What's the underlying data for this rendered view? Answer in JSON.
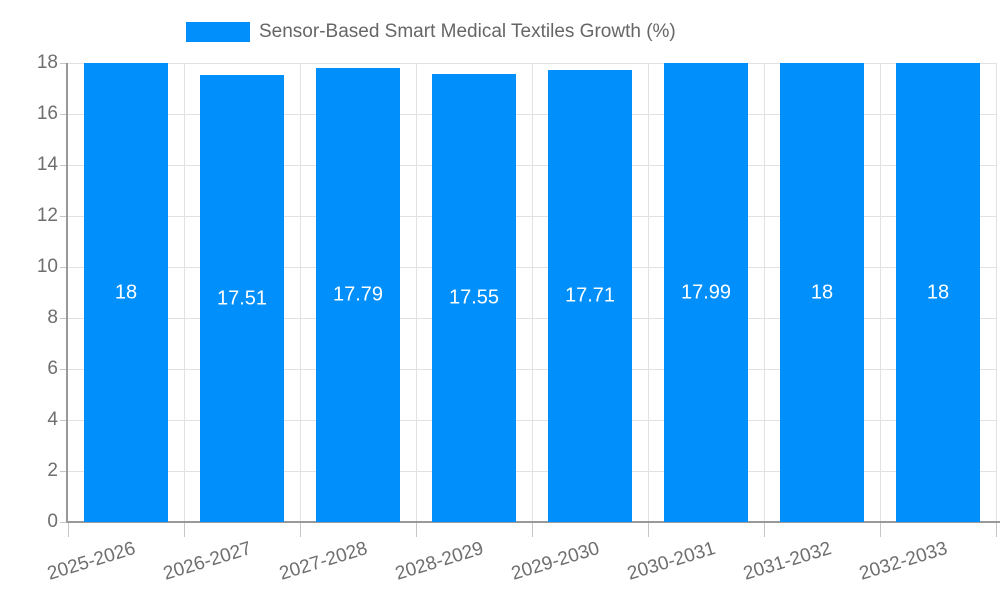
{
  "chart_data": {
    "type": "bar",
    "title": "",
    "legend": "Sensor-Based Smart Medical Textiles Growth (%)",
    "legend_position": "top-center",
    "categories": [
      "2025-2026",
      "2026-2027",
      "2027-2028",
      "2028-2029",
      "2029-2030",
      "2030-2031",
      "2031-2032",
      "2032-2033"
    ],
    "values": [
      18,
      17.51,
      17.79,
      17.55,
      17.71,
      17.99,
      18,
      18
    ],
    "bar_value_labels": [
      "18",
      "17.51",
      "17.79",
      "17.55",
      "17.71",
      "17.99",
      "18",
      "18"
    ],
    "xlabel": "",
    "ylabel": "",
    "ylim": [
      0,
      18
    ],
    "yticks": [
      0,
      2,
      4,
      6,
      8,
      10,
      12,
      14,
      16,
      18
    ],
    "grid": "on",
    "colors": {
      "bar": "#008ffb",
      "bar_label_text": "#ffffff",
      "axis_text": "#6e6e6e",
      "legend_text": "#666666",
      "grid_line": "#e2e2e2",
      "axis_line": "#999999",
      "tick_mark": "#c6c6c6"
    }
  }
}
